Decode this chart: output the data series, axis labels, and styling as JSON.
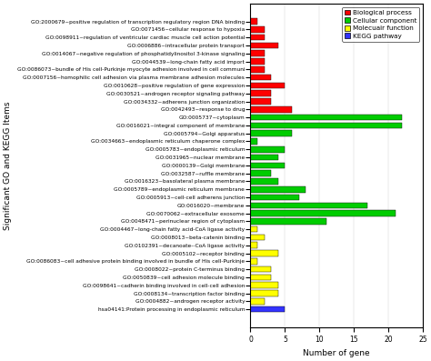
{
  "labels": [
    "GO:2000679~positive regulation of transcription regulatory region DNA binding",
    "GO:0071456~cellular response to hypoxia",
    "GO:0098911~regulation of ventricular cardiac muscle cell action potential",
    "GO:0006886~intracellular protein transport",
    "GO:0014067~negative regulation of phosphatidylinositol 3-kinase signaling",
    "GO:0044539~long-chain fatty acid import",
    "GO:0086073~bundle of His cell-Purkinje myocyte adhesion involved in cell communi",
    "GO:0007156~homophilic cell adhesion via plasma membrane adhesion molecules",
    "GO:0010628~positive regulation of gene expression",
    "GO:0030521~androgen receptor signaling pathway",
    "GO:0034332~adherens junction organization",
    "GO:0042493~response to drug",
    "GO:0005737~cytoplasm",
    "GO:0016021~integral component of membrane",
    "GO:0005794~Golgi apparatus",
    "GO:0034663~endoplasmic reticulum chaperone complex",
    "GO:0005783~endoplasmic reticulum",
    "GO:0031965~nuclear membrane",
    "GO:0000139~Golgi membrane",
    "GO:0032587~ruffle membrane",
    "GO:0016323~basolateral plasma membrane",
    "GO:0005789~endoplasmic reticulum membrane",
    "GO:0005913~cell-cell adherens junction",
    "GO:0016020~membrane",
    "GO:0070062~extracellular exosome",
    "GO:0048471~perinuclear region of cytoplasm",
    "GO:0004467~long-chain fatty acid-CoA ligase activity",
    "GO:0008013~beta-catenin binding",
    "GO:0102391~decanoate--CoA ligase activity",
    "GO:0005102~receptor binding",
    "GO:0086083~cell adhesive protein binding involved in bundle of His cell-Purkinje",
    "GO:0008022~protein C-terminus binding",
    "GO:0050839~cell adhesion molecule binding",
    "GO:0098641~cadherin binding involved in cell-cell adhesion",
    "GO:0008134~transcription factor binding",
    "GO:0004882~androgen receptor activity",
    "hsa04141:Protein processing in endoplasmic reticulum"
  ],
  "values": [
    1,
    2,
    2,
    4,
    2,
    2,
    2,
    3,
    5,
    3,
    3,
    6,
    22,
    22,
    6,
    1,
    5,
    4,
    5,
    3,
    4,
    8,
    7,
    17,
    21,
    11,
    1,
    2,
    1,
    4,
    1,
    3,
    3,
    4,
    4,
    2,
    5
  ],
  "colors": [
    "#ff0000",
    "#ff0000",
    "#ff0000",
    "#ff0000",
    "#ff0000",
    "#ff0000",
    "#ff0000",
    "#ff0000",
    "#ff0000",
    "#ff0000",
    "#ff0000",
    "#ff0000",
    "#00cc00",
    "#00cc00",
    "#00cc00",
    "#00cc00",
    "#00cc00",
    "#00cc00",
    "#00cc00",
    "#00cc00",
    "#00cc00",
    "#00cc00",
    "#00cc00",
    "#00cc00",
    "#00cc00",
    "#00cc00",
    "#ffff00",
    "#ffff00",
    "#ffff00",
    "#ffff00",
    "#ffff00",
    "#ffff00",
    "#ffff00",
    "#ffff00",
    "#ffff00",
    "#ffff00",
    "#3333ff"
  ],
  "xlabel": "Number of gene",
  "ylabel": "Significant GO and KEGG Items",
  "xlim": [
    0,
    25
  ],
  "xticks": [
    0,
    5,
    10,
    15,
    20,
    25
  ],
  "legend_items": [
    {
      "label": "Biological process",
      "color": "#ff0000"
    },
    {
      "label": "Cellular component",
      "color": "#00cc00"
    },
    {
      "label": "Molecuair function",
      "color": "#ffff00"
    },
    {
      "label": "KEGG pathway",
      "color": "#3333ff"
    }
  ],
  "bar_height": 0.75,
  "label_fontsize": 4.2,
  "tick_fontsize": 5.5,
  "axis_label_fontsize": 6.5,
  "legend_fontsize": 5.2
}
